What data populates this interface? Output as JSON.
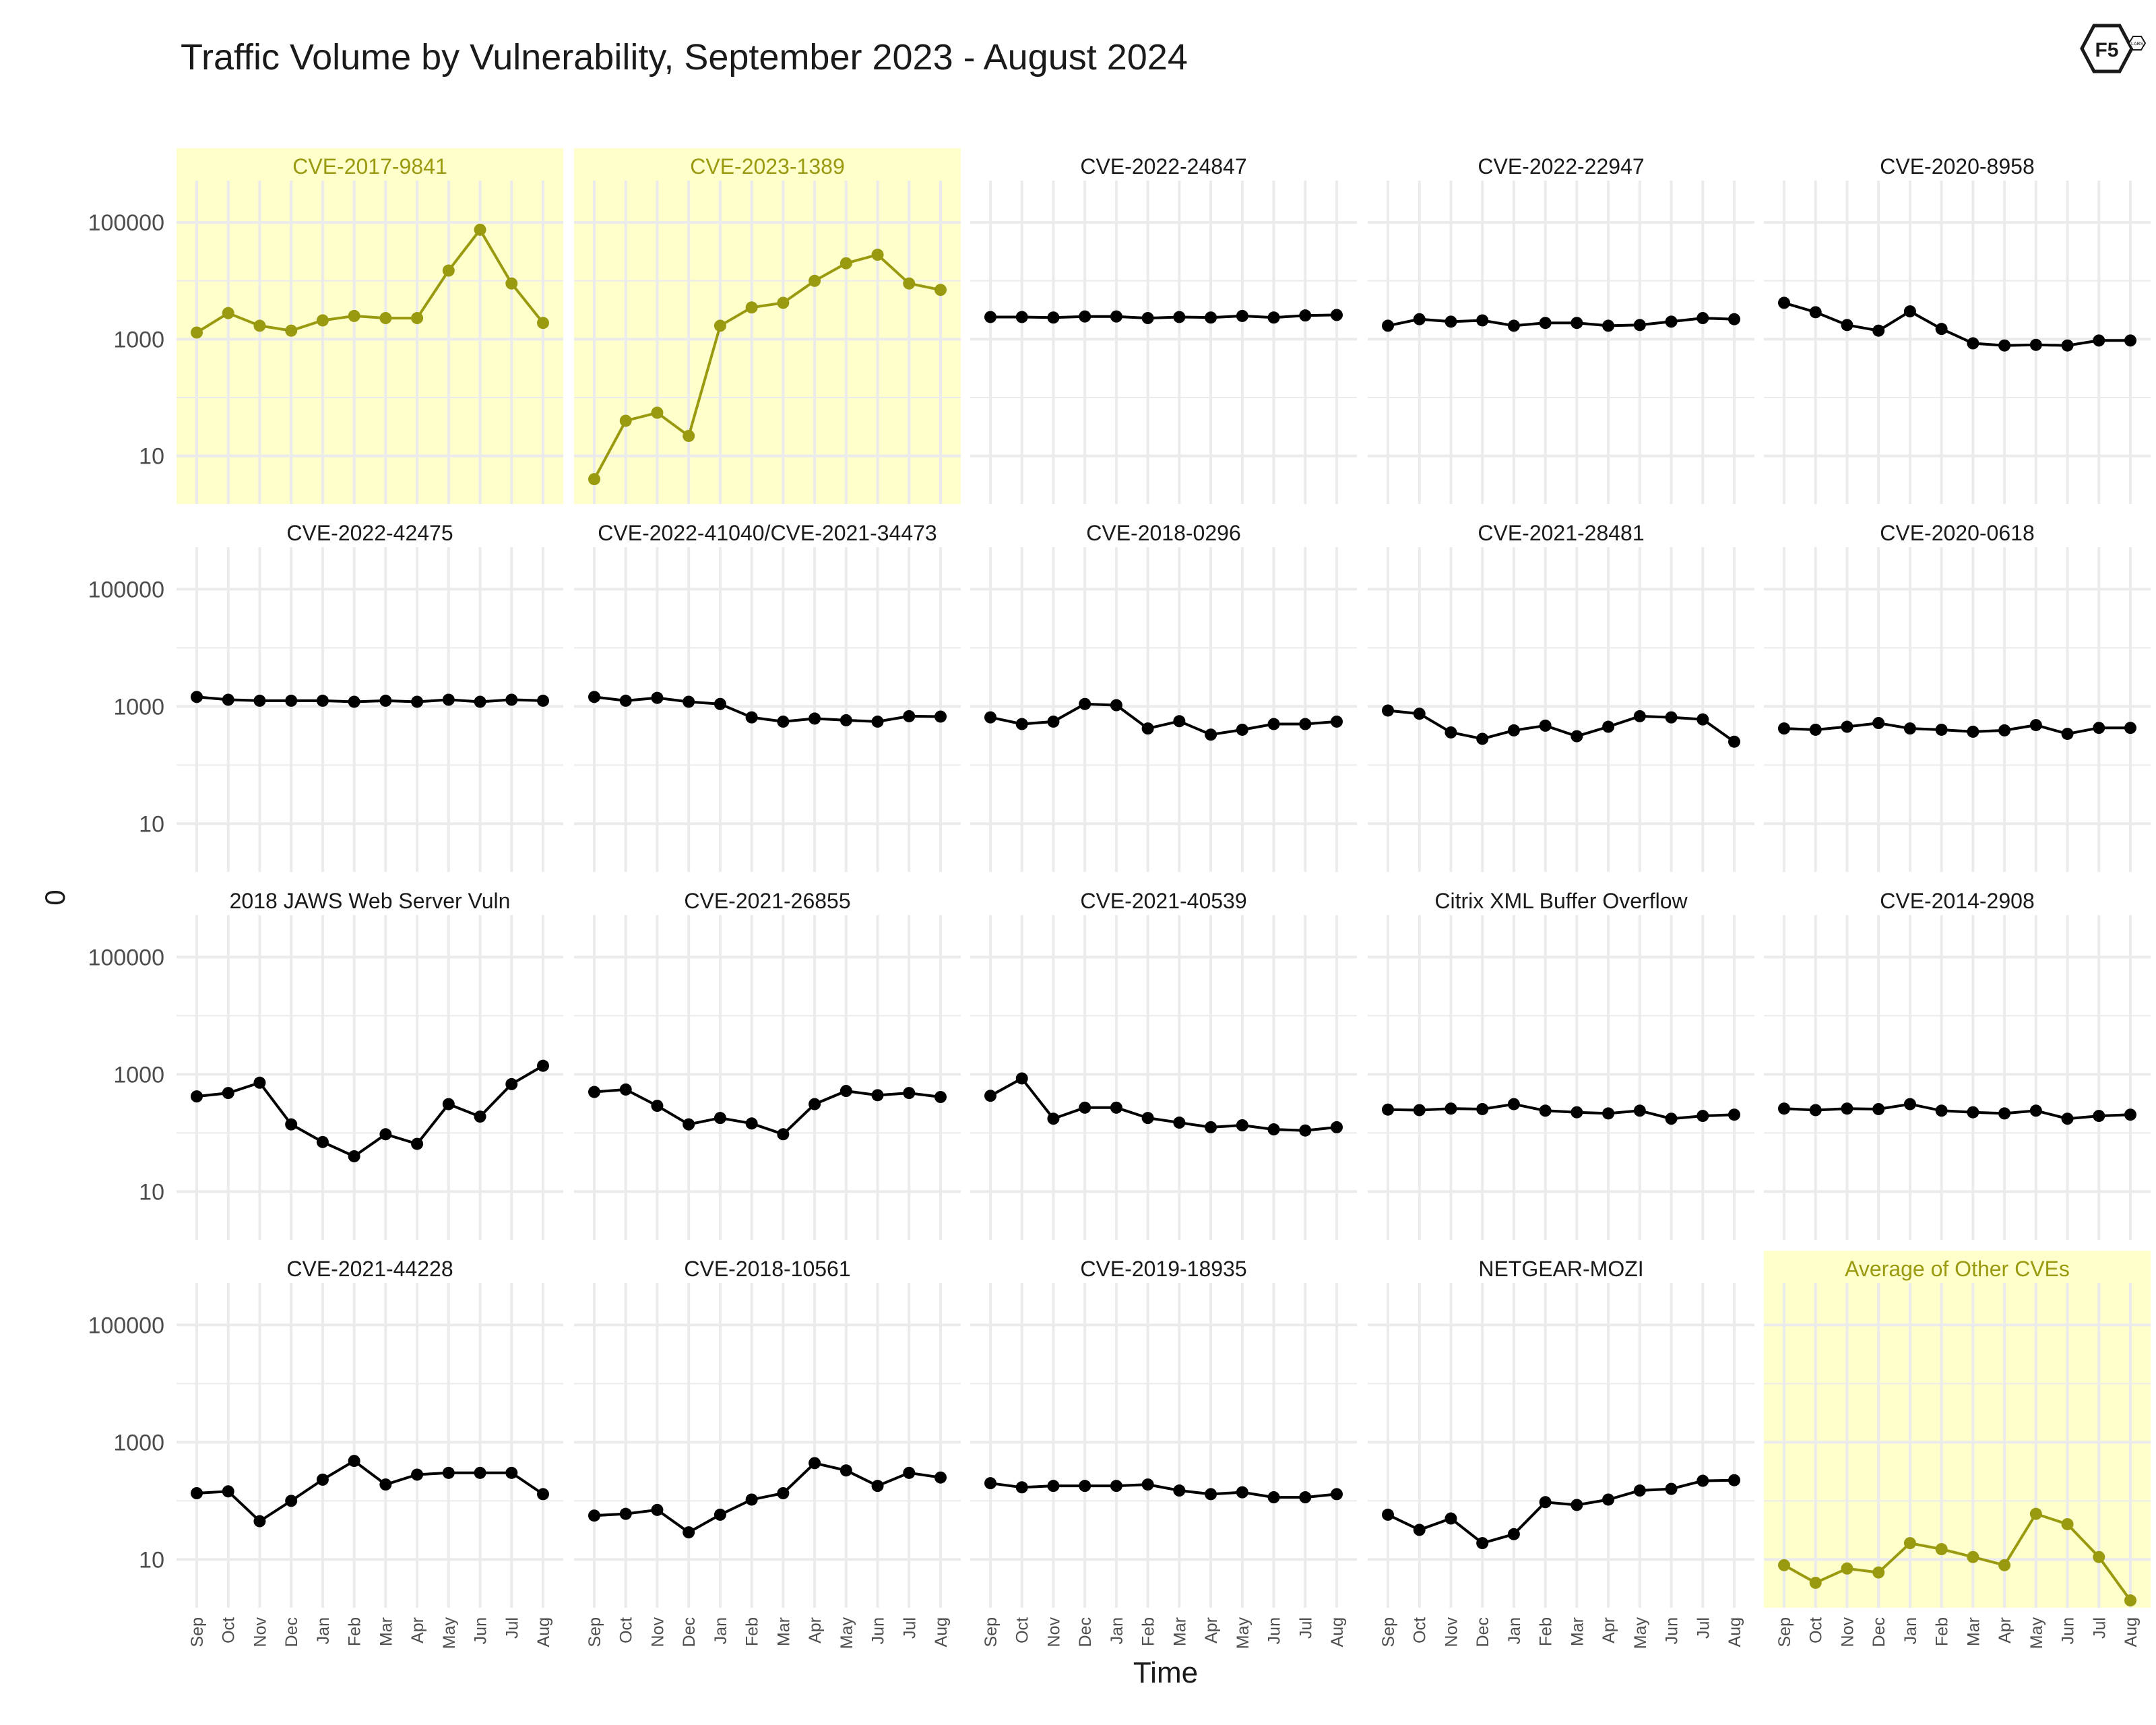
{
  "title": "Traffic Volume by Vulnerability, September 2023 - August 2024",
  "colors": {
    "highlight": "#9a9a10",
    "highlight_bg": "#ffffcc",
    "normal": "#000000",
    "grid": "#ebebeb"
  },
  "logo": {
    "text": "F5",
    "sub": "LABS"
  },
  "chart_data": {
    "type": "line",
    "xlabel": "Time",
    "ylabel": "0",
    "yscale": "log",
    "ylim": [
      1.5,
      400000
    ],
    "yticks": [
      "100000",
      "1000",
      "10"
    ],
    "ytick_values": [
      100000,
      1000,
      10
    ],
    "categories": [
      "Sep",
      "Oct",
      "Nov",
      "Dec",
      "Jan",
      "Feb",
      "Mar",
      "Apr",
      "May",
      "Jun",
      "Jul",
      "Aug"
    ],
    "legend": "none",
    "panels": [
      {
        "name": "CVE-2017-9841",
        "highlight": true,
        "values": [
          1300,
          2800,
          1700,
          1400,
          2100,
          2500,
          2300,
          2300,
          15000,
          75000,
          9000,
          1900
        ]
      },
      {
        "name": "CVE-2023-1389",
        "highlight": true,
        "values": [
          4,
          40,
          55,
          22,
          1700,
          3500,
          4200,
          10000,
          20000,
          28000,
          9000,
          7000
        ]
      },
      {
        "name": "CVE-2022-24847",
        "highlight": false,
        "values": [
          2400,
          2400,
          2350,
          2450,
          2450,
          2300,
          2400,
          2350,
          2500,
          2350,
          2550,
          2600
        ]
      },
      {
        "name": "CVE-2022-22947",
        "highlight": false,
        "values": [
          1700,
          2200,
          2000,
          2100,
          1700,
          1900,
          1900,
          1700,
          1750,
          2000,
          2300,
          2200
        ]
      },
      {
        "name": "CVE-2020-8958",
        "highlight": false,
        "values": [
          4200,
          2900,
          1750,
          1400,
          3000,
          1500,
          850,
          780,
          800,
          780,
          950,
          950
        ]
      },
      {
        "name": "CVE-2022-42475",
        "highlight": false,
        "values": [
          1450,
          1300,
          1250,
          1250,
          1250,
          1200,
          1250,
          1200,
          1300,
          1200,
          1300,
          1250
        ]
      },
      {
        "name": "CVE-2022-41040/CVE-2021-34473",
        "highlight": false,
        "values": [
          1450,
          1250,
          1400,
          1200,
          1100,
          650,
          550,
          620,
          580,
          550,
          680,
          670
        ]
      },
      {
        "name": "CVE-2018-0296",
        "highlight": false,
        "values": [
          650,
          500,
          550,
          1100,
          1050,
          420,
          560,
          330,
          400,
          500,
          500,
          550
        ]
      },
      {
        "name": "CVE-2021-28481",
        "highlight": false,
        "values": [
          850,
          750,
          360,
          280,
          390,
          470,
          310,
          450,
          680,
          650,
          600,
          250
        ]
      },
      {
        "name": "CVE-2020-0618",
        "highlight": false,
        "values": [
          420,
          400,
          450,
          520,
          420,
          400,
          370,
          390,
          480,
          340,
          430,
          430
        ]
      },
      {
        "name": "2018 JAWS Web Server Vuln",
        "highlight": false,
        "values": [
          420,
          480,
          720,
          140,
          70,
          40,
          95,
          65,
          310,
          190,
          680,
          1400
        ]
      },
      {
        "name": "CVE-2021-26855",
        "highlight": false,
        "values": [
          500,
          550,
          290,
          140,
          180,
          145,
          95,
          310,
          520,
          440,
          480,
          410
        ]
      },
      {
        "name": "CVE-2021-40539",
        "highlight": false,
        "values": [
          430,
          850,
          175,
          270,
          270,
          180,
          150,
          125,
          135,
          115,
          110,
          125
        ]
      },
      {
        "name": "Citrix XML Buffer Overflow",
        "highlight": false,
        "values": [
          250,
          245,
          260,
          255,
          310,
          240,
          225,
          215,
          240,
          175,
          195,
          205
        ]
      },
      {
        "name": "CVE-2014-2908",
        "highlight": false,
        "values": [
          260,
          245,
          260,
          255,
          310,
          240,
          225,
          215,
          240,
          175,
          195,
          205
        ]
      },
      {
        "name": "CVE-2021-44228",
        "highlight": false,
        "values": [
          135,
          145,
          45,
          100,
          230,
          480,
          190,
          280,
          300,
          300,
          300,
          130
        ]
      },
      {
        "name": "CVE-2018-10561",
        "highlight": false,
        "values": [
          56,
          60,
          70,
          29,
          58,
          105,
          135,
          440,
          330,
          180,
          300,
          250
        ]
      },
      {
        "name": "CVE-2019-18935",
        "highlight": false,
        "values": [
          200,
          170,
          180,
          180,
          180,
          190,
          150,
          130,
          140,
          115,
          115,
          130
        ]
      },
      {
        "name": "NETGEAR-MOZI",
        "highlight": false,
        "values": [
          58,
          32,
          50,
          19,
          27,
          95,
          85,
          105,
          150,
          160,
          220,
          225
        ]
      },
      {
        "name": "Average of Other CVEs",
        "highlight": true,
        "values": [
          8,
          4,
          7,
          6,
          19,
          15,
          11,
          8,
          60,
          40,
          11,
          2
        ]
      }
    ]
  }
}
